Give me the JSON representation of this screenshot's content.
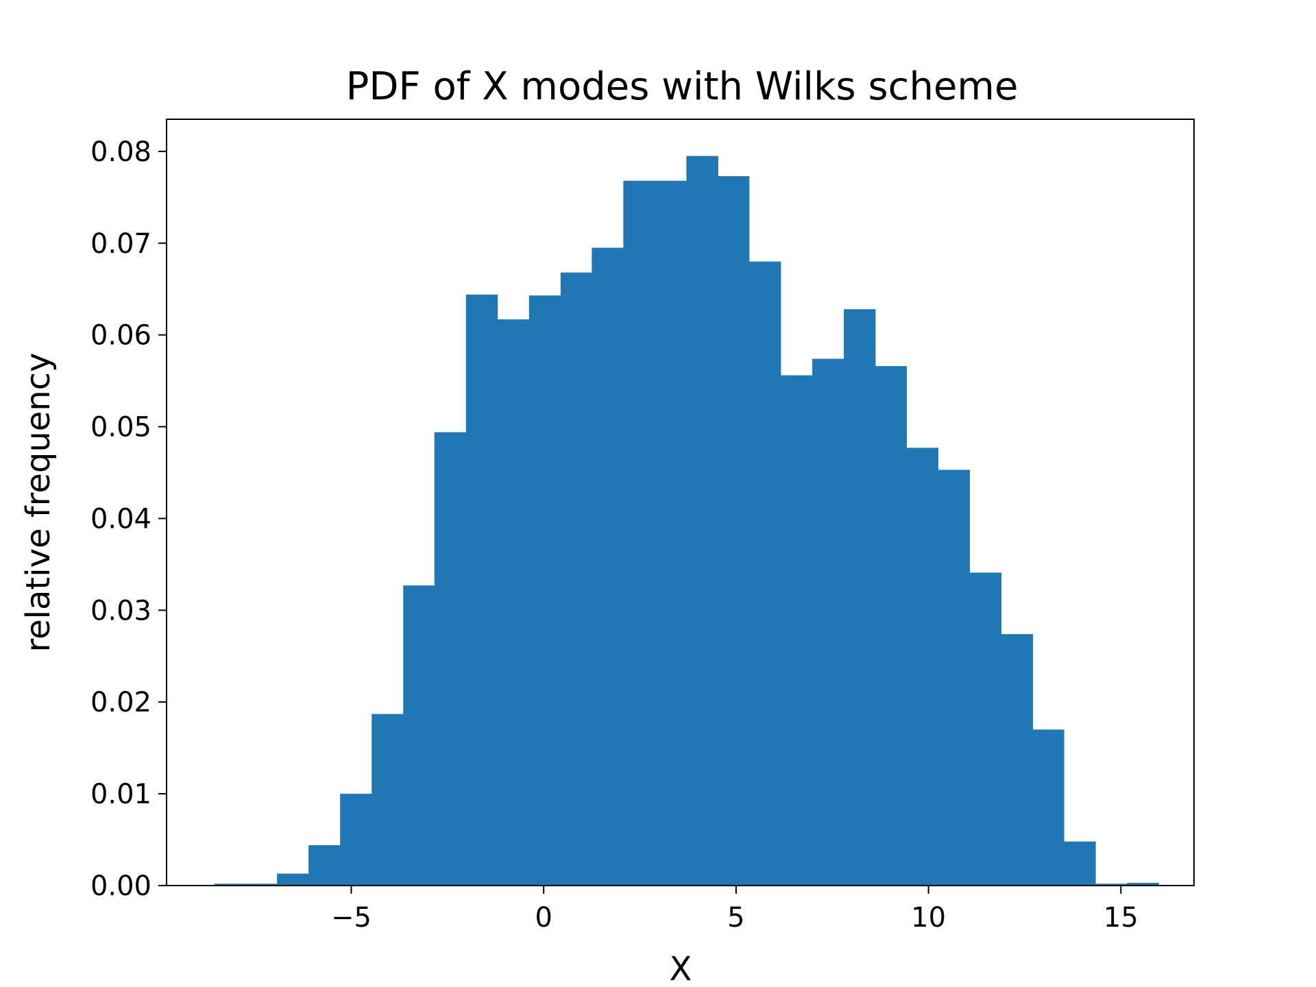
{
  "chart_data": {
    "type": "bar",
    "title": "PDF of X modes with Wilks scheme",
    "xlabel": "X",
    "ylabel": "relative frequency",
    "xlim": [
      -9.8,
      16.9
    ],
    "ylim": [
      0,
      0.0835
    ],
    "grid": false,
    "legend": "none",
    "bar_color": "#2177b4",
    "x_ticks": [
      {
        "value": -5,
        "label": "−5"
      },
      {
        "value": 0,
        "label": "0"
      },
      {
        "value": 5,
        "label": "5"
      },
      {
        "value": 10,
        "label": "10"
      },
      {
        "value": 15,
        "label": "15"
      }
    ],
    "y_ticks": [
      {
        "value": 0.0,
        "label": "0.00"
      },
      {
        "value": 0.01,
        "label": "0.01"
      },
      {
        "value": 0.02,
        "label": "0.02"
      },
      {
        "value": 0.03,
        "label": "0.03"
      },
      {
        "value": 0.04,
        "label": "0.04"
      },
      {
        "value": 0.05,
        "label": "0.05"
      },
      {
        "value": 0.06,
        "label": "0.06"
      },
      {
        "value": 0.07,
        "label": "0.07"
      },
      {
        "value": 0.08,
        "label": "0.08"
      }
    ],
    "bin_edges": [
      -8.56,
      -7.74,
      -6.93,
      -6.11,
      -5.29,
      -4.47,
      -3.65,
      -2.84,
      -2.02,
      -1.2,
      -0.38,
      0.44,
      1.25,
      2.07,
      2.89,
      3.71,
      4.53,
      5.34,
      6.16,
      6.98,
      7.8,
      8.62,
      9.43,
      10.25,
      11.07,
      11.89,
      12.71,
      13.52,
      14.34,
      15.16,
      15.98
    ],
    "values": [
      0.0002,
      0.0002,
      0.0013,
      0.0044,
      0.01,
      0.0187,
      0.0327,
      0.0494,
      0.0644,
      0.0617,
      0.0643,
      0.0668,
      0.0695,
      0.0768,
      0.0768,
      0.0795,
      0.0773,
      0.068,
      0.0556,
      0.0574,
      0.0628,
      0.0566,
      0.0477,
      0.0453,
      0.0341,
      0.0274,
      0.017,
      0.0048,
      0.0002,
      0.0003
    ]
  }
}
